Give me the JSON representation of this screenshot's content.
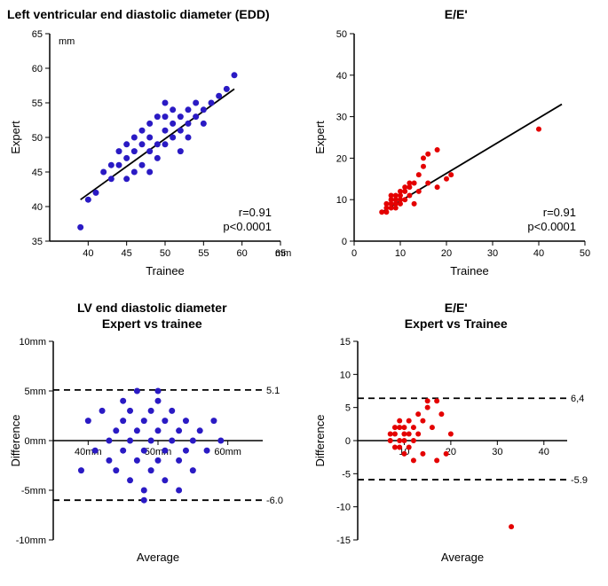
{
  "panel_a": {
    "type": "scatter",
    "title": "Left ventricular end diastolic diameter (EDD)",
    "xlabel": "Trainee",
    "ylabel": "Expert",
    "unit": "mm",
    "xlim": [
      35,
      65
    ],
    "ylim": [
      35,
      65
    ],
    "xticks": [
      40,
      45,
      50,
      55,
      60,
      65
    ],
    "yticks": [
      35,
      40,
      45,
      50,
      55,
      60,
      65
    ],
    "marker_color": "#2a1ac4",
    "marker_size": 3.5,
    "line_color": "#000000",
    "background_color": "#ffffff",
    "stat_r": "r=0.91",
    "stat_p": "p<0.0001",
    "title_fontsize": 14,
    "label_fontsize": 13,
    "points": [
      [
        39,
        37
      ],
      [
        40,
        41
      ],
      [
        41,
        42
      ],
      [
        42,
        45
      ],
      [
        43,
        44
      ],
      [
        43,
        46
      ],
      [
        44,
        46
      ],
      [
        44,
        48
      ],
      [
        45,
        44
      ],
      [
        45,
        47
      ],
      [
        45,
        49
      ],
      [
        46,
        45
      ],
      [
        46,
        48
      ],
      [
        46,
        50
      ],
      [
        47,
        46
      ],
      [
        47,
        49
      ],
      [
        47,
        51
      ],
      [
        48,
        48
      ],
      [
        48,
        50
      ],
      [
        48,
        52
      ],
      [
        49,
        47
      ],
      [
        49,
        49
      ],
      [
        49,
        53
      ],
      [
        50,
        49
      ],
      [
        50,
        51
      ],
      [
        50,
        53
      ],
      [
        51,
        50
      ],
      [
        51,
        52
      ],
      [
        51,
        54
      ],
      [
        52,
        51
      ],
      [
        52,
        53
      ],
      [
        53,
        50
      ],
      [
        53,
        52
      ],
      [
        53,
        54
      ],
      [
        54,
        53
      ],
      [
        54,
        55
      ],
      [
        55,
        52
      ],
      [
        55,
        54
      ],
      [
        56,
        55
      ],
      [
        57,
        56
      ],
      [
        58,
        57
      ],
      [
        59,
        59
      ],
      [
        52,
        48
      ],
      [
        48,
        45
      ],
      [
        50,
        55
      ]
    ],
    "fit_line": {
      "x1": 39,
      "y1": 41,
      "x2": 59,
      "y2": 57
    }
  },
  "panel_b": {
    "type": "scatter",
    "title": "E/E'",
    "xlabel": "Trainee",
    "ylabel": "Expert",
    "xlim": [
      0,
      50
    ],
    "ylim": [
      0,
      50
    ],
    "xticks": [
      0,
      10,
      20,
      30,
      40,
      50
    ],
    "yticks": [
      0,
      10,
      20,
      30,
      40,
      50
    ],
    "marker_color": "#e40000",
    "marker_size": 3,
    "line_color": "#000000",
    "background_color": "#ffffff",
    "stat_r": "r=0.91",
    "stat_p": "p<0.0001",
    "title_fontsize": 14,
    "label_fontsize": 13,
    "points": [
      [
        6,
        7
      ],
      [
        7,
        7
      ],
      [
        7,
        8
      ],
      [
        7,
        9
      ],
      [
        8,
        8
      ],
      [
        8,
        9
      ],
      [
        8,
        10
      ],
      [
        8,
        11
      ],
      [
        9,
        8
      ],
      [
        9,
        9
      ],
      [
        9,
        10
      ],
      [
        9,
        11
      ],
      [
        10,
        9
      ],
      [
        10,
        10
      ],
      [
        10,
        11
      ],
      [
        10,
        12
      ],
      [
        11,
        10
      ],
      [
        11,
        12
      ],
      [
        11,
        13
      ],
      [
        12,
        11
      ],
      [
        12,
        13
      ],
      [
        12,
        14
      ],
      [
        13,
        9
      ],
      [
        13,
        14
      ],
      [
        14,
        12
      ],
      [
        14,
        16
      ],
      [
        15,
        18
      ],
      [
        15,
        20
      ],
      [
        16,
        14
      ],
      [
        16,
        21
      ],
      [
        18,
        13
      ],
      [
        18,
        22
      ],
      [
        20,
        15
      ],
      [
        21,
        16
      ],
      [
        40,
        27
      ]
    ],
    "fit_line": {
      "x1": 6,
      "y1": 7,
      "x2": 45,
      "y2": 33
    }
  },
  "panel_c": {
    "type": "bland-altman",
    "title_line1": "LV end diastolic diameter",
    "title_line2": "Expert vs trainee",
    "xlabel": "Average",
    "ylabel": "Difference",
    "xlim": [
      35,
      65
    ],
    "ylim": [
      -10,
      10
    ],
    "xticks": [
      {
        "v": 40,
        "l": "40mm"
      },
      {
        "v": 50,
        "l": "50mm"
      },
      {
        "v": 60,
        "l": "60mm"
      }
    ],
    "yticks": [
      {
        "v": -10,
        "l": "-10mm"
      },
      {
        "v": -5,
        "l": "-5mm"
      },
      {
        "v": 0,
        "l": "0mm"
      },
      {
        "v": 5,
        "l": "5mm"
      },
      {
        "v": 10,
        "l": "10mm"
      }
    ],
    "marker_color": "#2a1ac4",
    "marker_size": 3.5,
    "line_color": "#000000",
    "background_color": "#ffffff",
    "upper_loa": 5.1,
    "lower_loa": -6.0,
    "upper_label": "5.1",
    "lower_label": "-6.0",
    "points": [
      [
        39,
        -3
      ],
      [
        40,
        2
      ],
      [
        41,
        -1
      ],
      [
        42,
        3
      ],
      [
        43,
        0
      ],
      [
        43,
        -2
      ],
      [
        44,
        1
      ],
      [
        44,
        -3
      ],
      [
        45,
        2
      ],
      [
        45,
        -1
      ],
      [
        45,
        4
      ],
      [
        46,
        0
      ],
      [
        46,
        -4
      ],
      [
        46,
        3
      ],
      [
        47,
        1
      ],
      [
        47,
        -2
      ],
      [
        47,
        5
      ],
      [
        48,
        -1
      ],
      [
        48,
        2
      ],
      [
        48,
        -5
      ],
      [
        49,
        0
      ],
      [
        49,
        3
      ],
      [
        49,
        -3
      ],
      [
        50,
        1
      ],
      [
        50,
        -2
      ],
      [
        50,
        4
      ],
      [
        51,
        -1
      ],
      [
        51,
        2
      ],
      [
        51,
        -4
      ],
      [
        52,
        0
      ],
      [
        52,
        3
      ],
      [
        53,
        -2
      ],
      [
        53,
        1
      ],
      [
        53,
        -5
      ],
      [
        54,
        2
      ],
      [
        54,
        -1
      ],
      [
        55,
        0
      ],
      [
        55,
        -3
      ],
      [
        56,
        1
      ],
      [
        57,
        -1
      ],
      [
        58,
        2
      ],
      [
        59,
        0
      ],
      [
        48,
        -6
      ],
      [
        50,
        5
      ]
    ]
  },
  "panel_d": {
    "type": "bland-altman",
    "title_line1": "E/E'",
    "title_line2": "Expert vs Trainee",
    "xlabel": "Average",
    "ylabel": "Difference",
    "xlim": [
      0,
      45
    ],
    "ylim": [
      -15,
      15
    ],
    "xticks": [
      {
        "v": 10,
        "l": "10"
      },
      {
        "v": 20,
        "l": "20"
      },
      {
        "v": 30,
        "l": "30"
      },
      {
        "v": 40,
        "l": "40"
      }
    ],
    "yticks": [
      {
        "v": -15,
        "l": "-15"
      },
      {
        "v": -10,
        "l": "-10"
      },
      {
        "v": -5,
        "l": "-5"
      },
      {
        "v": 0,
        "l": "0"
      },
      {
        "v": 5,
        "l": "5"
      },
      {
        "v": 10,
        "l": "10"
      },
      {
        "v": 15,
        "l": "15"
      }
    ],
    "marker_color": "#e40000",
    "marker_size": 3,
    "line_color": "#000000",
    "background_color": "#ffffff",
    "upper_loa": 6.4,
    "lower_loa": -5.9,
    "upper_label": "6,4",
    "lower_label": "-5.9",
    "points": [
      [
        7,
        1
      ],
      [
        7,
        0
      ],
      [
        8,
        -1
      ],
      [
        8,
        1
      ],
      [
        8,
        2
      ],
      [
        9,
        0
      ],
      [
        9,
        -1
      ],
      [
        9,
        2
      ],
      [
        9,
        3
      ],
      [
        10,
        0
      ],
      [
        10,
        1
      ],
      [
        10,
        -2
      ],
      [
        10,
        2
      ],
      [
        11,
        1
      ],
      [
        11,
        -1
      ],
      [
        11,
        3
      ],
      [
        12,
        0
      ],
      [
        12,
        2
      ],
      [
        12,
        -3
      ],
      [
        13,
        1
      ],
      [
        13,
        4
      ],
      [
        14,
        -2
      ],
      [
        14,
        3
      ],
      [
        15,
        5
      ],
      [
        15,
        6
      ],
      [
        16,
        2
      ],
      [
        17,
        6
      ],
      [
        17,
        -3
      ],
      [
        18,
        4
      ],
      [
        19,
        -2
      ],
      [
        20,
        1
      ],
      [
        33,
        -13
      ]
    ]
  }
}
